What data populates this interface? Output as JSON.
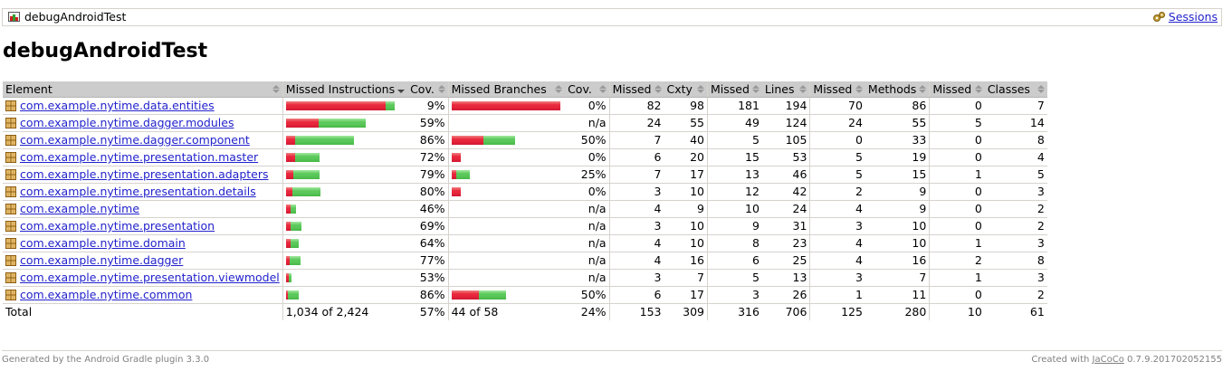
{
  "breadcrumb": {
    "title": "debugAndroidTest",
    "sessions_label": "Sessions"
  },
  "page_title": "debugAndroidTest",
  "headers": {
    "element": "Element",
    "missed_instructions": "Missed Instructions",
    "cov1": "Cov.",
    "missed_branches": "Missed Branches",
    "cov2": "Cov.",
    "missed_cxty": "Missed",
    "cxty": "Cxty",
    "missed_lines": "Missed",
    "lines": "Lines",
    "missed_methods": "Missed",
    "methods": "Methods",
    "missed_classes": "Missed",
    "classes": "Classes"
  },
  "rows": [
    {
      "name": "com.example.nytime.data.entities",
      "instr_cov": "9%",
      "instr_red": 110,
      "instr_green": 10,
      "br_cov": "0%",
      "br_red": 120,
      "br_green": 0,
      "mc": "82",
      "c": "98",
      "ml": "181",
      "l": "194",
      "mm": "70",
      "m": "86",
      "mcl": "0",
      "cl": "7"
    },
    {
      "name": "com.example.nytime.dagger.modules",
      "instr_cov": "59%",
      "instr_red": 36,
      "instr_green": 52,
      "br_cov": "n/a",
      "br_red": 0,
      "br_green": 0,
      "mc": "24",
      "c": "55",
      "ml": "49",
      "l": "124",
      "mm": "24",
      "m": "55",
      "mcl": "5",
      "cl": "14"
    },
    {
      "name": "com.example.nytime.dagger.component",
      "instr_cov": "86%",
      "instr_red": 10,
      "instr_green": 65,
      "br_cov": "50%",
      "br_red": 35,
      "br_green": 35,
      "mc": "7",
      "c": "40",
      "ml": "5",
      "l": "105",
      "mm": "0",
      "m": "33",
      "mcl": "0",
      "cl": "8"
    },
    {
      "name": "com.example.nytime.presentation.master",
      "instr_cov": "72%",
      "instr_red": 10,
      "instr_green": 27,
      "br_cov": "0%",
      "br_red": 10,
      "br_green": 0,
      "mc": "6",
      "c": "20",
      "ml": "15",
      "l": "53",
      "mm": "5",
      "m": "19",
      "mcl": "0",
      "cl": "4"
    },
    {
      "name": "com.example.nytime.presentation.adapters",
      "instr_cov": "79%",
      "instr_red": 8,
      "instr_green": 29,
      "br_cov": "25%",
      "br_red": 5,
      "br_green": 15,
      "mc": "7",
      "c": "17",
      "ml": "13",
      "l": "46",
      "mm": "5",
      "m": "15",
      "mcl": "1",
      "cl": "5"
    },
    {
      "name": "com.example.nytime.presentation.details",
      "instr_cov": "80%",
      "instr_red": 7,
      "instr_green": 31,
      "br_cov": "0%",
      "br_red": 10,
      "br_green": 0,
      "mc": "3",
      "c": "10",
      "ml": "12",
      "l": "42",
      "mm": "2",
      "m": "9",
      "mcl": "0",
      "cl": "3"
    },
    {
      "name": "com.example.nytime",
      "instr_cov": "46%",
      "instr_red": 5,
      "instr_green": 6,
      "br_cov": "n/a",
      "br_red": 0,
      "br_green": 0,
      "mc": "4",
      "c": "9",
      "ml": "10",
      "l": "24",
      "mm": "4",
      "m": "9",
      "mcl": "0",
      "cl": "2"
    },
    {
      "name": "com.example.nytime.presentation",
      "instr_cov": "69%",
      "instr_red": 5,
      "instr_green": 12,
      "br_cov": "n/a",
      "br_red": 0,
      "br_green": 0,
      "mc": "3",
      "c": "10",
      "ml": "9",
      "l": "31",
      "mm": "3",
      "m": "10",
      "mcl": "0",
      "cl": "2"
    },
    {
      "name": "com.example.nytime.domain",
      "instr_cov": "64%",
      "instr_red": 5,
      "instr_green": 9,
      "br_cov": "n/a",
      "br_red": 0,
      "br_green": 0,
      "mc": "4",
      "c": "10",
      "ml": "8",
      "l": "23",
      "mm": "4",
      "m": "10",
      "mcl": "1",
      "cl": "3"
    },
    {
      "name": "com.example.nytime.dagger",
      "instr_cov": "77%",
      "instr_red": 4,
      "instr_green": 12,
      "br_cov": "n/a",
      "br_red": 0,
      "br_green": 0,
      "mc": "4",
      "c": "16",
      "ml": "6",
      "l": "25",
      "mm": "4",
      "m": "16",
      "mcl": "2",
      "cl": "8"
    },
    {
      "name": "com.example.nytime.presentation.viewmodel",
      "instr_cov": "53%",
      "instr_red": 3,
      "instr_green": 3,
      "br_cov": "n/a",
      "br_red": 0,
      "br_green": 0,
      "mc": "3",
      "c": "7",
      "ml": "5",
      "l": "13",
      "mm": "3",
      "m": "7",
      "mcl": "1",
      "cl": "3"
    },
    {
      "name": "com.example.nytime.common",
      "instr_cov": "86%",
      "instr_red": 2,
      "instr_green": 12,
      "br_cov": "50%",
      "br_red": 30,
      "br_green": 30,
      "mc": "6",
      "c": "17",
      "ml": "3",
      "l": "26",
      "mm": "1",
      "m": "11",
      "mcl": "0",
      "cl": "2"
    }
  ],
  "total": {
    "label": "Total",
    "instr": "1,034 of 2,424",
    "instr_cov": "57%",
    "br": "44 of 58",
    "br_cov": "24%",
    "mc": "153",
    "c": "309",
    "ml": "316",
    "l": "706",
    "mm": "125",
    "m": "280",
    "mcl": "10",
    "cl": "61"
  },
  "footer": {
    "generated": "Generated by the Android Gradle plugin 3.3.0",
    "created_prefix": "Created with",
    "jacoco": "JaCoCo",
    "created_suffix": "0.7.9.201702052155"
  }
}
